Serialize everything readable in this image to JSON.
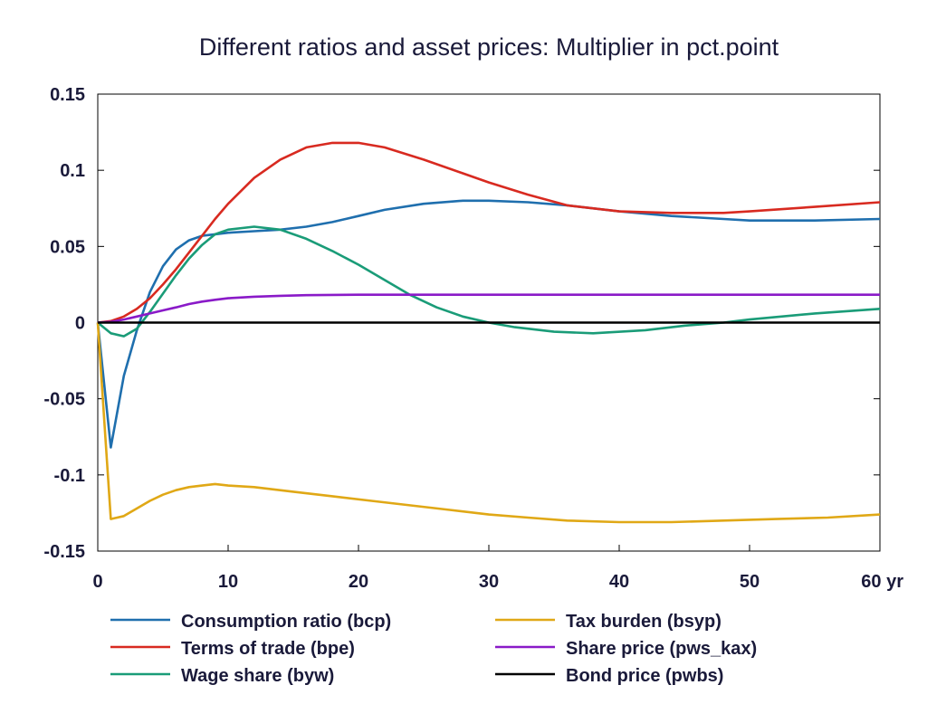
{
  "chart_data": {
    "type": "line",
    "title": "Different ratios and asset prices: Multiplier in pct.point",
    "xlabel": "",
    "ylabel": "",
    "x_unit_label": "yr",
    "xlim": [
      0,
      60
    ],
    "ylim": [
      -0.15,
      0.15
    ],
    "x_ticks": [
      0,
      10,
      20,
      30,
      40,
      50,
      60
    ],
    "x_tick_labels": [
      "0",
      "10",
      "20",
      "30",
      "40",
      "50",
      "60 yr"
    ],
    "y_ticks": [
      0.15,
      0.1,
      0.05,
      0,
      -0.05,
      -0.1,
      -0.15
    ],
    "y_tick_labels": [
      "0.15",
      "0.1",
      "0.05",
      "0",
      "-0.05",
      "-0.1",
      "-0.15"
    ],
    "grid": false,
    "legend_position": "bottom",
    "series": [
      {
        "name": "Consumption ratio (bcp)",
        "color": "#1f6fae",
        "x": [
          0,
          1,
          2,
          3,
          4,
          5,
          6,
          7,
          8,
          9,
          10,
          12,
          14,
          16,
          18,
          20,
          22,
          25,
          28,
          30,
          33,
          36,
          40,
          44,
          48,
          50,
          55,
          60
        ],
        "y": [
          0,
          -0.082,
          -0.035,
          -0.005,
          0.02,
          0.037,
          0.048,
          0.054,
          0.057,
          0.058,
          0.059,
          0.06,
          0.061,
          0.063,
          0.066,
          0.07,
          0.074,
          0.078,
          0.08,
          0.08,
          0.079,
          0.077,
          0.073,
          0.07,
          0.068,
          0.067,
          0.067,
          0.068
        ]
      },
      {
        "name": "Terms of trade (bpe)",
        "color": "#d82a20",
        "x": [
          0,
          1,
          2,
          3,
          4,
          5,
          6,
          7,
          8,
          9,
          10,
          12,
          14,
          16,
          18,
          20,
          22,
          25,
          28,
          30,
          33,
          36,
          40,
          44,
          48,
          50,
          55,
          60
        ],
        "y": [
          0,
          0.001,
          0.004,
          0.009,
          0.016,
          0.025,
          0.035,
          0.046,
          0.057,
          0.068,
          0.078,
          0.095,
          0.107,
          0.115,
          0.118,
          0.118,
          0.115,
          0.107,
          0.098,
          0.092,
          0.084,
          0.077,
          0.073,
          0.072,
          0.072,
          0.073,
          0.076,
          0.079
        ]
      },
      {
        "name": "Wage share (byw)",
        "color": "#1a9c78",
        "x": [
          0,
          1,
          2,
          3,
          4,
          5,
          6,
          7,
          8,
          9,
          10,
          12,
          14,
          16,
          18,
          20,
          22,
          24,
          26,
          28,
          30,
          32,
          35,
          38,
          42,
          45,
          48,
          50,
          55,
          60
        ],
        "y": [
          0,
          -0.007,
          -0.009,
          -0.004,
          0.007,
          0.019,
          0.031,
          0.042,
          0.051,
          0.058,
          0.061,
          0.063,
          0.061,
          0.055,
          0.047,
          0.038,
          0.028,
          0.018,
          0.01,
          0.004,
          0.0,
          -0.003,
          -0.006,
          -0.007,
          -0.005,
          -0.002,
          0.0,
          0.002,
          0.006,
          0.009
        ]
      },
      {
        "name": "Tax burden (bsyp)",
        "color": "#e0a816",
        "x": [
          0,
          1,
          2,
          3,
          4,
          5,
          6,
          7,
          8,
          9,
          10,
          12,
          15,
          18,
          21,
          24,
          27,
          30,
          33,
          36,
          40,
          44,
          48,
          52,
          56,
          60
        ],
        "y": [
          0,
          -0.129,
          -0.127,
          -0.122,
          -0.117,
          -0.113,
          -0.11,
          -0.108,
          -0.107,
          -0.106,
          -0.107,
          -0.108,
          -0.111,
          -0.114,
          -0.117,
          -0.12,
          -0.123,
          -0.126,
          -0.128,
          -0.13,
          -0.131,
          -0.131,
          -0.13,
          -0.129,
          -0.128,
          -0.126
        ]
      },
      {
        "name": "Share price (pws_kax)",
        "color": "#8a1ac8",
        "x": [
          0,
          1,
          2,
          3,
          4,
          5,
          6,
          7,
          8,
          9,
          10,
          12,
          14,
          16,
          18,
          20,
          25,
          30,
          40,
          50,
          60
        ],
        "y": [
          0,
          0.0005,
          0.002,
          0.004,
          0.006,
          0.008,
          0.01,
          0.0122,
          0.0138,
          0.015,
          0.016,
          0.017,
          0.0176,
          0.018,
          0.0182,
          0.0183,
          0.0183,
          0.0183,
          0.0183,
          0.0183,
          0.0183
        ]
      },
      {
        "name": "Bond price (pwbs)",
        "color": "#000000",
        "x": [
          0,
          60
        ],
        "y": [
          0,
          0
        ]
      }
    ]
  }
}
